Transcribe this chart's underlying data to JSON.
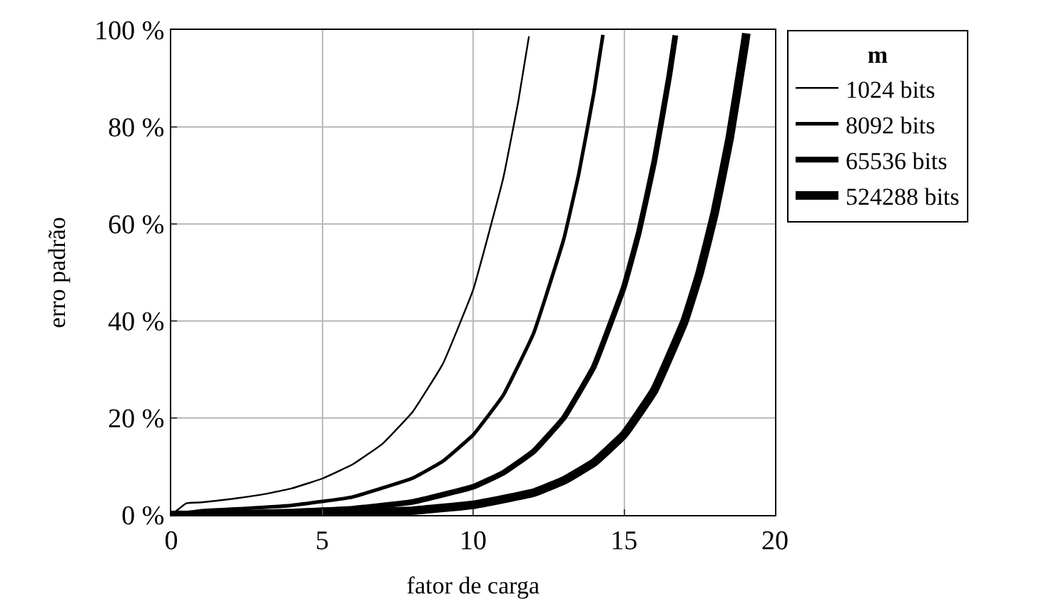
{
  "chart_data": {
    "type": "line",
    "xlabel": "fator de carga",
    "ylabel": "erro padrão",
    "legend_title": "m",
    "xlim": [
      0,
      20
    ],
    "ylim": [
      0,
      100
    ],
    "xticks": [
      0,
      5,
      10,
      15,
      20
    ],
    "yticks": [
      {
        "value": 0,
        "label": "0 %"
      },
      {
        "value": 20,
        "label": "20 %"
      },
      {
        "value": 40,
        "label": "40 %"
      },
      {
        "value": 60,
        "label": "60 %"
      },
      {
        "value": 80,
        "label": "80 %"
      },
      {
        "value": 100,
        "label": "100 %"
      }
    ],
    "grid": true,
    "legend": "top right",
    "marker": "none",
    "line_style": "solid",
    "series": [
      {
        "name": "1024 bits",
        "color": "#000000",
        "x": [
          0,
          0.5,
          1,
          2,
          3,
          4,
          5,
          6,
          7,
          8,
          9,
          10,
          11,
          11.5,
          11.85
        ],
        "values": [
          0,
          2.4,
          2.6,
          3.3,
          4.2,
          5.5,
          7.5,
          10.4,
          14.7,
          21.3,
          31.2,
          46.4,
          69.5,
          85.4,
          98.7
        ]
      },
      {
        "name": "8092 bits",
        "color": "#000000",
        "x": [
          0,
          1,
          2,
          4,
          6,
          8,
          9,
          10,
          11,
          12,
          13,
          13.5,
          14,
          14.3
        ],
        "values": [
          0,
          0.9,
          1.2,
          2.0,
          3.7,
          7.6,
          11.1,
          16.5,
          24.7,
          37.4,
          56.8,
          70.3,
          87.0,
          99.0
        ]
      },
      {
        "name": "65536 bits",
        "color": "#000000",
        "x": [
          0,
          2,
          4,
          6,
          8,
          10,
          11,
          12,
          13,
          14,
          15,
          15.5,
          16,
          16.5,
          16.7
        ],
        "values": [
          0,
          0.4,
          0.7,
          1.3,
          2.7,
          5.8,
          8.7,
          13.1,
          20.0,
          30.6,
          47.1,
          58.5,
          72.8,
          90.6,
          98.9
        ]
      },
      {
        "name": "524288 bits",
        "color": "#000000",
        "x": [
          0,
          2,
          4,
          6,
          8,
          10,
          12,
          13,
          14,
          15,
          16,
          17,
          17.5,
          18,
          18.5,
          19,
          19.05
        ],
        "values": [
          0,
          0.1,
          0.2,
          0.5,
          0.9,
          2.1,
          4.6,
          7.1,
          10.8,
          16.6,
          25.7,
          39.9,
          49.8,
          62.2,
          77.7,
          97.1,
          99.3
        ]
      }
    ]
  }
}
